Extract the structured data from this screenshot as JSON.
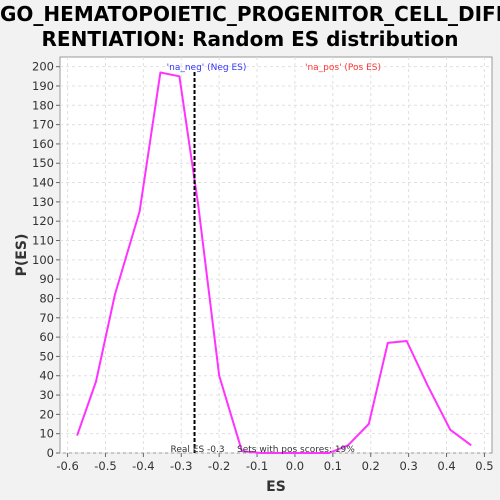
{
  "chart_data": {
    "type": "line",
    "title_lines": [
      "GO_HEMATOPOIETIC_PROGENITOR_CELL_DIFFE",
      "RENTIATION: Random ES distribution"
    ],
    "xlabel": "ES",
    "ylabel": "P(ES)",
    "xlim": [
      -0.62,
      0.52
    ],
    "ylim": [
      0,
      205
    ],
    "xticks": [
      -0.6,
      -0.5,
      -0.4,
      -0.3,
      -0.2,
      -0.1,
      0.0,
      0.1,
      0.2,
      0.3,
      0.4,
      0.5
    ],
    "xtick_labels": [
      "-0.6",
      "-0.5",
      "-0.4",
      "-0.3",
      "-0.2",
      "-0.1",
      "0.0",
      "0.1",
      "0.2",
      "0.3",
      "0.4",
      "0.5"
    ],
    "yticks": [
      0,
      10,
      20,
      30,
      40,
      50,
      60,
      70,
      80,
      90,
      100,
      110,
      120,
      130,
      140,
      150,
      160,
      170,
      180,
      190,
      200
    ],
    "ytick_labels": [
      "0",
      "10",
      "20",
      "30",
      "40",
      "50",
      "60",
      "70",
      "80",
      "90",
      "100",
      "110",
      "120",
      "130",
      "140",
      "150",
      "160",
      "170",
      "180",
      "190",
      "200"
    ],
    "grid": true,
    "series": [
      {
        "color": "#ff33ff",
        "x": [
          -0.575,
          -0.525,
          -0.475,
          -0.41,
          -0.355,
          -0.305,
          -0.255,
          -0.2,
          -0.14,
          -0.09,
          -0.04,
          0.0,
          0.04,
          0.09,
          0.14,
          0.195,
          0.245,
          0.295,
          0.35,
          0.41,
          0.465
        ],
        "y": [
          9,
          37,
          82,
          125,
          197,
          195,
          128,
          40,
          1,
          0,
          0,
          0,
          0,
          0,
          4,
          15,
          57,
          58,
          35,
          12,
          4
        ]
      }
    ],
    "real_es": -0.265,
    "annotations": {
      "neg_label": "'na_neg' (Neg ES)",
      "pos_label": "'na_pos' (Pos ES)",
      "real_es_label": "Real ES -0.3",
      "sets_label": "Sets with pos scores: 19%"
    },
    "colors": {
      "neg": "#3333ff",
      "pos": "#ff3333"
    }
  }
}
